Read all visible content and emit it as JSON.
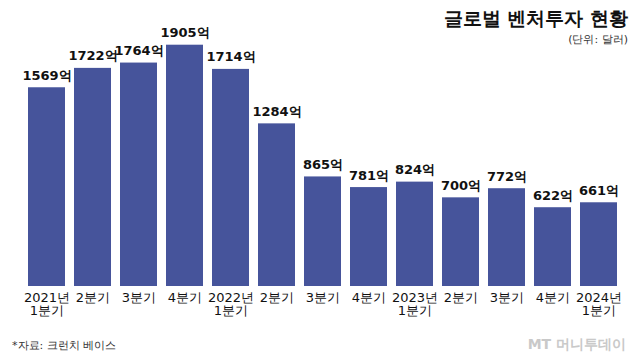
{
  "chart_data": {
    "type": "bar",
    "title": "글로벌 벤처투자 현황",
    "subtitle": "(단위: 달러)",
    "caption": "*자료: 크런치 베이스",
    "watermark": "MT 머니투데이",
    "categories": [
      "2021년\n1분기",
      "2분기",
      "3분기",
      "4분기",
      "2022년\n1분기",
      "2분기",
      "3분기",
      "4분기",
      "2023년\n1분기",
      "2분기",
      "3분기",
      "4분기",
      "2024년\n1분기"
    ],
    "values": [
      1569,
      1722,
      1764,
      1905,
      1714,
      1284,
      865,
      781,
      824,
      700,
      772,
      622,
      661
    ],
    "value_labels": [
      "1569억",
      "1722억",
      "1764억",
      "1905억",
      "1714억",
      "1284억",
      "865억",
      "781억",
      "824억",
      "700억",
      "772억",
      "622억",
      "661억"
    ],
    "color": "#46549b",
    "ylim": [
      0,
      2100
    ],
    "data_labels": true,
    "tick_labels": "x",
    "grid": false
  }
}
